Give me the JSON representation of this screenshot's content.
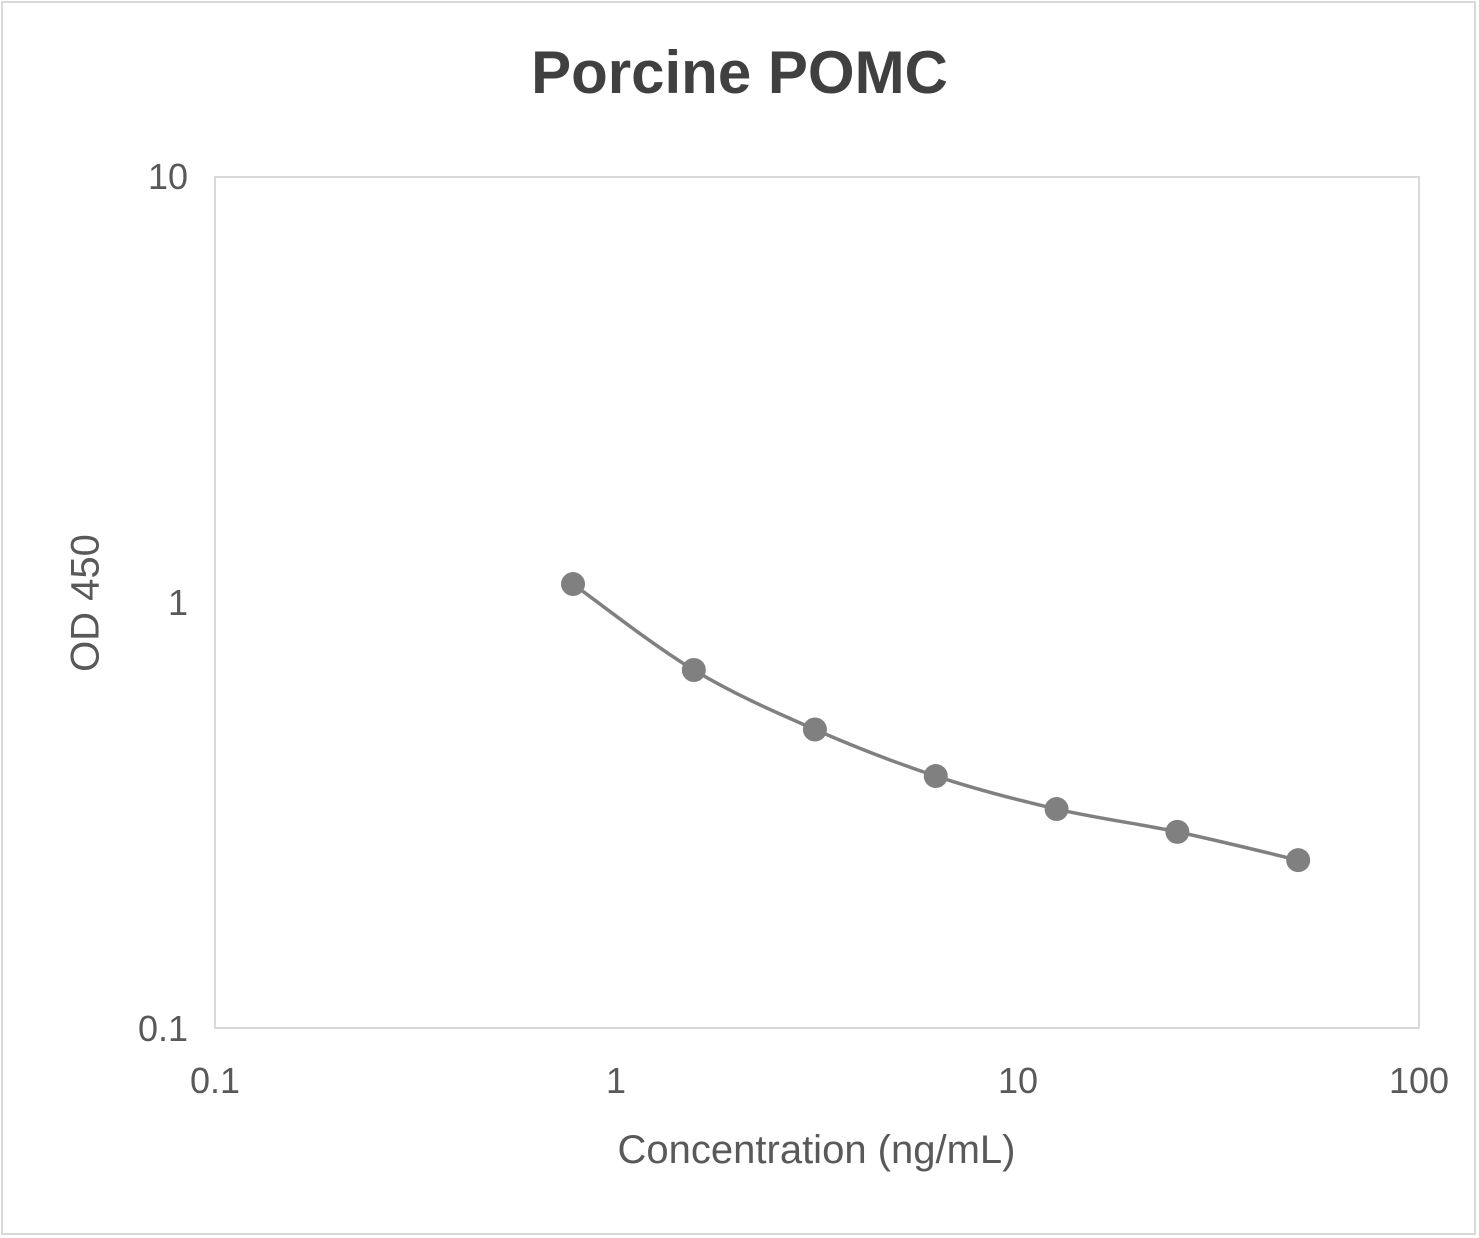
{
  "chart_data": {
    "type": "line",
    "title": "Porcine POMC",
    "xlabel": "Concentration (ng/mL)",
    "ylabel": "OD 450",
    "xscale": "log",
    "yscale": "log",
    "xlim": [
      0.1,
      100
    ],
    "ylim": [
      0.1,
      10
    ],
    "x_ticks": [
      "0.1",
      "1",
      "10",
      "100"
    ],
    "y_ticks": [
      "0.1",
      "1",
      "10"
    ],
    "grid": false,
    "legend": null,
    "series": [
      {
        "name": "Porcine POMC",
        "color": "#808080",
        "marker": "circle",
        "smooth": true,
        "x": [
          0.78,
          1.56,
          3.125,
          6.25,
          12.5,
          25,
          50
        ],
        "y": [
          1.105,
          0.694,
          0.503,
          0.391,
          0.327,
          0.289,
          0.248
        ]
      }
    ]
  },
  "labels": {
    "title": "Porcine POMC",
    "xlabel": "Concentration (ng/mL)",
    "ylabel": "OD 450",
    "yticks": [
      "10",
      "1",
      "0.1"
    ],
    "xticks": [
      "0.1",
      "1",
      "10",
      "100"
    ]
  }
}
